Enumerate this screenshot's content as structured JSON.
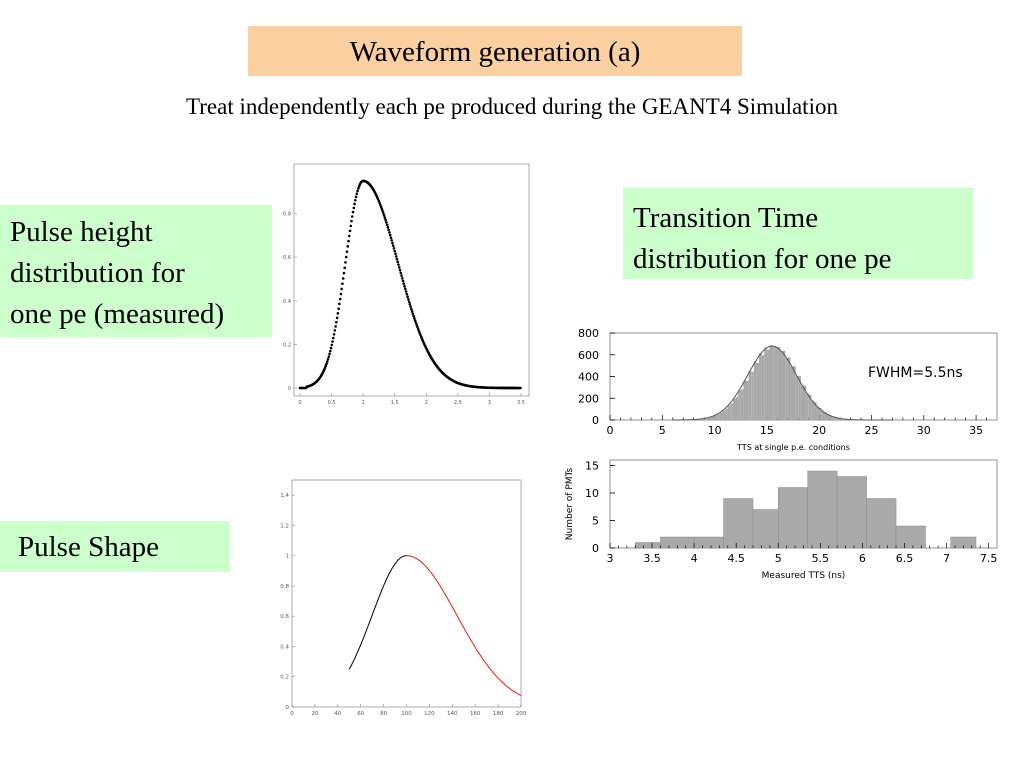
{
  "slide": {
    "title": "Waveform generation (a)",
    "subtitle": "Treat independently each pe produced during the GEANT4 Simulation",
    "labels": {
      "pulse_height": [
        "Pulse height",
        "distribution for",
        "one pe (measured)"
      ],
      "tts": [
        "Transition Time",
        "distribution for one pe"
      ],
      "pulse_shape": "Pulse Shape"
    }
  },
  "colors": {
    "title_bg": "#fbcf9f",
    "label_bg": "#ccffcc",
    "hist_fill": "#a9a9a9",
    "pulse_fall": "#e02010"
  },
  "chart_data": [
    {
      "id": "pulse-height",
      "type": "scatter",
      "xlim": [
        0,
        3.5
      ],
      "ylim": [
        0,
        1
      ],
      "xticks": [
        "0",
        "0.5",
        "1",
        "1.5",
        "2",
        "2.5",
        "3",
        "3.5"
      ],
      "yticks": [
        "0",
        "0.2",
        "0.4",
        "0.6",
        "0.8"
      ],
      "curve": {
        "peak_x": 1.0,
        "peak_y": 0.95,
        "sigma_left": 0.28,
        "sigma_right": 0.55,
        "start_x": 0.1
      }
    },
    {
      "id": "tts-single-pe",
      "type": "bar",
      "xlabel": "TTS at single p.e. conditions",
      "annotation": "FWHM=5.5ns",
      "xlim": [
        0,
        37
      ],
      "ylim": [
        0,
        800
      ],
      "xticks": [
        "0",
        "5",
        "10",
        "15",
        "20",
        "25",
        "30",
        "35"
      ],
      "yticks": [
        "0",
        "200",
        "400",
        "600",
        "800"
      ],
      "gauss": {
        "mean": 15.5,
        "fwhm": 5.5,
        "amplitude": 680
      }
    },
    {
      "id": "measured-tts",
      "type": "bar",
      "xlabel": "Measured TTS (ns)",
      "ylabel": "Number of PMTs",
      "xlim": [
        3,
        7.6
      ],
      "ylim": [
        0,
        16
      ],
      "xticks": [
        "3",
        "3.5",
        "4",
        "4.5",
        "5",
        "5.5",
        "6",
        "6.5",
        "7",
        "7.5"
      ],
      "yticks": [
        "0",
        "5",
        "10",
        "15"
      ],
      "bins": [
        {
          "x0": 3.3,
          "x1": 3.6,
          "v": 1
        },
        {
          "x0": 3.6,
          "x1": 4.0,
          "v": 2
        },
        {
          "x0": 4.0,
          "x1": 4.35,
          "v": 2
        },
        {
          "x0": 4.35,
          "x1": 4.7,
          "v": 9
        },
        {
          "x0": 4.7,
          "x1": 5.0,
          "v": 7
        },
        {
          "x0": 5.0,
          "x1": 5.35,
          "v": 11
        },
        {
          "x0": 5.35,
          "x1": 5.7,
          "v": 14
        },
        {
          "x0": 5.7,
          "x1": 6.05,
          "v": 13
        },
        {
          "x0": 6.05,
          "x1": 6.4,
          "v": 9
        },
        {
          "x0": 6.4,
          "x1": 6.75,
          "v": 4
        },
        {
          "x0": 6.75,
          "x1": 7.05,
          "v": 0
        },
        {
          "x0": 7.05,
          "x1": 7.35,
          "v": 2
        }
      ]
    },
    {
      "id": "pulse-shape",
      "type": "line",
      "xlim": [
        0,
        200
      ],
      "ylim": [
        0,
        1.5
      ],
      "xticks": [
        "0",
        "20",
        "40",
        "60",
        "80",
        "100",
        "120",
        "140",
        "160",
        "180",
        "200"
      ],
      "yticks": [
        "0",
        "0.2",
        "0.4",
        "0.6",
        "0.8",
        "1",
        "1.2",
        "1,4"
      ],
      "curve": {
        "start_x": 50,
        "peak_x": 100,
        "peak_y": 1.0,
        "sigma_rise": 30,
        "sigma_fall": 44,
        "end_x": 200
      }
    }
  ]
}
